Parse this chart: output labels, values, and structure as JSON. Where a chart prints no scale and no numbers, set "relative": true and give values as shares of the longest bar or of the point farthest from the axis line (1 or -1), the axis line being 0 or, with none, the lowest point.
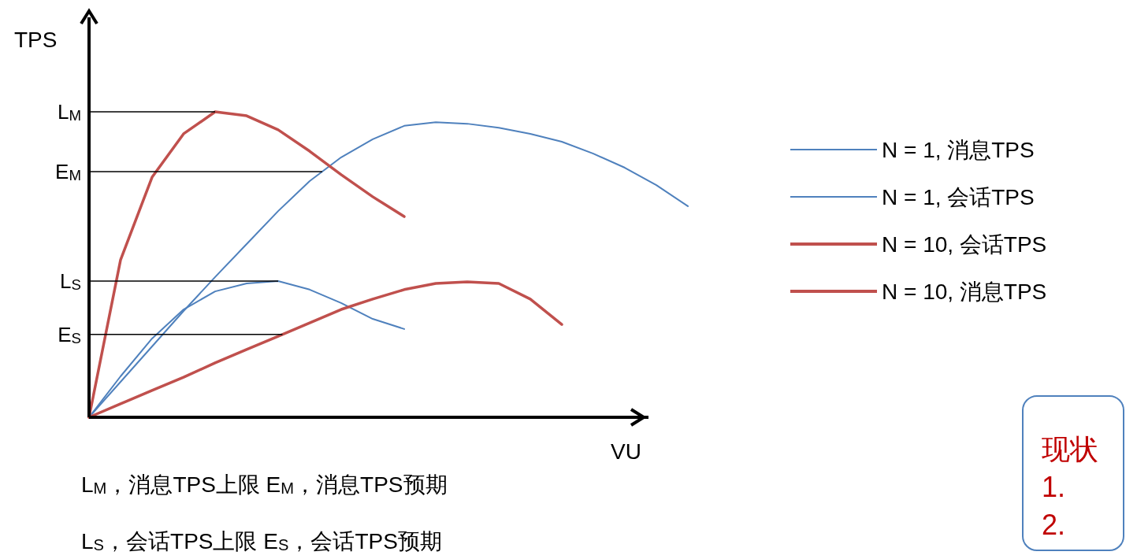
{
  "chart_data": {
    "type": "line",
    "relative": true,
    "xlabel": "VU",
    "ylabel": "TPS",
    "legend": "right",
    "categories": [
      null,
      null,
      null,
      null,
      null,
      null,
      null,
      null,
      null,
      null,
      null,
      null,
      null,
      null,
      null,
      null,
      null,
      null,
      null,
      null
    ],
    "series": [
      {
        "name": "N = 1, 消息TPS",
        "color": "#4f81bd",
        "values": [
          0,
          0.116,
          0.232,
          0.348,
          0.459,
          0.567,
          0.675,
          0.773,
          0.851,
          0.91,
          0.954,
          0.966,
          0.961,
          0.948,
          0.928,
          0.902,
          0.863,
          0.817,
          0.76,
          0.691
        ]
      },
      {
        "name": "N = 1, 会话TPS",
        "color": "#4f81bd",
        "values": [
          0,
          0.134,
          0.258,
          0.353,
          0.412,
          0.438,
          0.446,
          0.418,
          0.374,
          0.322,
          0.289,
          null,
          null,
          null,
          null,
          null,
          null,
          null,
          null,
          null
        ]
      },
      {
        "name": "N = 10, 会话TPS",
        "color": "#c0504d",
        "values": [
          0,
          0.044,
          0.088,
          0.131,
          0.178,
          0.222,
          0.265,
          0.309,
          0.353,
          0.387,
          0.418,
          0.438,
          0.443,
          0.438,
          0.387,
          0.304,
          null,
          null,
          null,
          null
        ]
      },
      {
        "name": "N = 10, 消息TPS",
        "color": "#c0504d",
        "values": [
          0,
          0.515,
          0.786,
          0.928,
          1,
          0.987,
          0.941,
          0.871,
          0.794,
          0.722,
          0.657,
          null,
          null,
          null,
          null,
          null,
          null,
          null,
          null,
          null
        ]
      }
    ],
    "ref_lines": [
      {
        "axis": "y",
        "value": 1,
        "label": "L$_{M}$"
      },
      {
        "axis": "y",
        "value": 0.804,
        "label": "E$_{M}$"
      },
      {
        "axis": "y",
        "value": 0.446,
        "label": "L$_{S}$"
      },
      {
        "axis": "y",
        "value": 0.271,
        "label": "E$_{S}$"
      }
    ],
    "annotations": [
      "L$_{M}$，消息TPS上限   E$_{M}$，消息TPS预期",
      "L$_{S}$，会话TPS上限   E$_{S}$，会话TPS预期",
      "现状\n1.\n2."
    ]
  }
}
